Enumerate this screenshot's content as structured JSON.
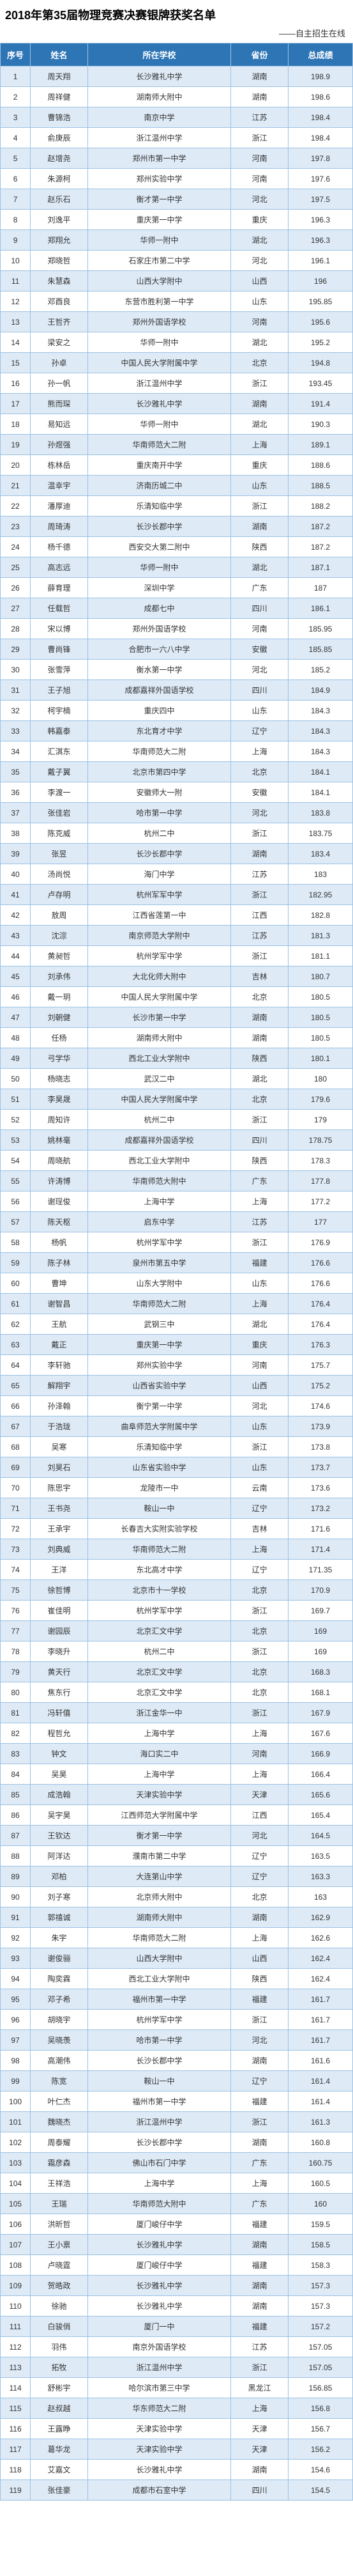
{
  "title": "2018年第35届物理竞赛决赛银牌获奖名单",
  "subtitle": "——自主招生在线",
  "columns": [
    "序号",
    "姓名",
    "所在学校",
    "省份",
    "总成绩"
  ],
  "rows": [
    [
      1,
      "周天翔",
      "长沙雅礼中学",
      "湖南",
      198.9
    ],
    [
      2,
      "周祥健",
      "湖南师大附中",
      "湖南",
      198.6
    ],
    [
      3,
      "曹锦浩",
      "南京中学",
      "江苏",
      198.4
    ],
    [
      4,
      "俞庚辰",
      "浙江温州中学",
      "浙江",
      198.4
    ],
    [
      5,
      "赵增尧",
      "郑州市第一中学",
      "河南",
      197.8
    ],
    [
      6,
      "朱源柯",
      "郑州实验中学",
      "河南",
      197.6
    ],
    [
      7,
      "赵乐石",
      "衡才第一中学",
      "河北",
      197.5
    ],
    [
      8,
      "刘逸平",
      "重庆第一中学",
      "重庆",
      196.3
    ],
    [
      9,
      "郑翔允",
      "华师一附中",
      "湖北",
      196.3
    ],
    [
      10,
      "郑晓哲",
      "石家庄市第二中学",
      "河北",
      196.1
    ],
    [
      11,
      "朱慧森",
      "山西大学附中",
      "山西",
      "196"
    ],
    [
      12,
      "邓酉良",
      "东营市胜利第一中学",
      "山东",
      195.85
    ],
    [
      13,
      "王哲齐",
      "郑州外国语学校",
      "河南",
      195.6
    ],
    [
      14,
      "梁安之",
      "华师一附中",
      "湖北",
      195.2
    ],
    [
      15,
      "孙卓",
      "中国人民大学附属中学",
      "北京",
      194.8
    ],
    [
      16,
      "孙一帆",
      "浙江温州中学",
      "浙江",
      193.45
    ],
    [
      17,
      "熊而琛",
      "长沙雅礼中学",
      "湖南",
      191.4
    ],
    [
      18,
      "易知远",
      "华师一附中",
      "湖北",
      190.3
    ],
    [
      19,
      "孙煜强",
      "华南师范大二附",
      "上海",
      189.1
    ],
    [
      20,
      "栋林岳",
      "重庆南开中学",
      "重庆",
      188.6
    ],
    [
      21,
      "温幸宇",
      "济南历城二中",
      "山东",
      188.5
    ],
    [
      22,
      "潘厚迪",
      "乐清知临中学",
      "浙江",
      188.2
    ],
    [
      23,
      "周琦涛",
      "长沙长郡中学",
      "湖南",
      187.2
    ],
    [
      24,
      "杨千德",
      "西安交大第二附中",
      "陕西",
      187.2
    ],
    [
      25,
      "高志远",
      "华师一附中",
      "湖北",
      187.1
    ],
    [
      26,
      "薛育理",
      "深圳中学",
      "广东",
      "187"
    ],
    [
      27,
      "任载哲",
      "成都七中",
      "四川",
      186.1
    ],
    [
      28,
      "宋以博",
      "郑州外国语学校",
      "河南",
      185.95
    ],
    [
      29,
      "曹尚锋",
      "合肥市一六八中学",
      "安徽",
      185.85
    ],
    [
      30,
      "张雪萍",
      "衡水第一中学",
      "河北",
      185.2
    ],
    [
      31,
      "王子旭",
      "成都嘉祥外国语学校",
      "四川",
      184.9
    ],
    [
      32,
      "柯宇楠",
      "重庆四中",
      "山东",
      184.3
    ],
    [
      33,
      "韩嘉泰",
      "东北育才中学",
      "辽宁",
      184.3
    ],
    [
      34,
      "汇淇东",
      "华南师范大二附",
      "上海",
      184.3
    ],
    [
      35,
      "戴子翼",
      "北京市第四中学",
      "北京",
      184.1
    ],
    [
      36,
      "李渡一",
      "安徽师大一附",
      "安徽",
      184.1
    ],
    [
      37,
      "张佳岩",
      "哈市第一中学",
      "河北",
      183.8
    ],
    [
      38,
      "陈克威",
      "杭州二中",
      "浙江",
      183.75
    ],
    [
      39,
      "张昱",
      "长沙长郡中学",
      "湖南",
      183.4
    ],
    [
      40,
      "汤尚悦",
      "海门中学",
      "江苏",
      "183"
    ],
    [
      41,
      "卢存明",
      "杭州军军中学",
      "浙江",
      182.95
    ],
    [
      42,
      "敖周",
      "江西省莲第一中",
      "江西",
      182.8
    ],
    [
      43,
      "沈淙",
      "南京师范大学附中",
      "江苏",
      181.3
    ],
    [
      44,
      "黄昶哲",
      "杭州学军中学",
      "浙江",
      181.1
    ],
    [
      45,
      "刘承伟",
      "大北化师大附中",
      "吉林",
      180.7
    ],
    [
      46,
      "戴一玥",
      "中国人民大学附属中学",
      "北京",
      180.5
    ],
    [
      47,
      "刘朝健",
      "长沙市第一中学",
      "湖南",
      180.5
    ],
    [
      48,
      "任杨",
      "湖南师大附中",
      "湖南",
      180.5
    ],
    [
      49,
      "弓学华",
      "西北工业大学附中",
      "陕西",
      180.1
    ],
    [
      50,
      "杨晓志",
      "武汉二中",
      "湖北",
      "180"
    ],
    [
      51,
      "李昊晟",
      "中国人民大学附属中学",
      "北京",
      179.6
    ],
    [
      52,
      "周知许",
      "杭州二中",
      "浙江",
      "179"
    ],
    [
      53,
      "姚林毫",
      "成都嘉祥外国语学校",
      "四川",
      178.75
    ],
    [
      54,
      "周晓航",
      "西北工业大学附中",
      "陕西",
      178.3
    ],
    [
      55,
      "许涛博",
      "华南师范大附中",
      "广东",
      177.8
    ],
    [
      56,
      "谢珵俊",
      "上海中学",
      "上海",
      177.2
    ],
    [
      57,
      "陈天枢",
      "启东中学",
      "江苏",
      "177"
    ],
    [
      58,
      "杨帆",
      "杭州学军中学",
      "浙江",
      176.9
    ],
    [
      59,
      "陈子林",
      "泉州市第五中学",
      "福建",
      176.6
    ],
    [
      60,
      "曹坤",
      "山东大学附中",
      "山东",
      176.6
    ],
    [
      61,
      "谢智昌",
      "华南师范大二附",
      "上海",
      176.4
    ],
    [
      62,
      "王航",
      "武钢三中",
      "湖北",
      176.4
    ],
    [
      63,
      "戴正",
      "重庆第一中学",
      "重庆",
      176.3
    ],
    [
      64,
      "李轩驰",
      "郑州实验中学",
      "河南",
      175.7
    ],
    [
      65,
      "解翔宇",
      "山西省实验中学",
      "山西",
      175.2
    ],
    [
      66,
      "孙泽翰",
      "衡宁第一中学",
      "河北",
      174.6
    ],
    [
      67,
      "于浩珑",
      "曲阜师范大学附属中学",
      "山东",
      173.9
    ],
    [
      68,
      "吴寒",
      "乐清知临中学",
      "浙江",
      173.8
    ],
    [
      69,
      "刘昊石",
      "山东省实验中学",
      "山东",
      173.7
    ],
    [
      70,
      "陈思宇",
      "龙陵市一中",
      "云南",
      173.6
    ],
    [
      71,
      "王书尧",
      "鞍山一中",
      "辽宁",
      173.2
    ],
    [
      72,
      "王承宇",
      "长春吉大实附实验学校",
      "吉林",
      171.6
    ],
    [
      73,
      "刘典威",
      "华南师范大二附",
      "上海",
      171.4
    ],
    [
      74,
      "王洋",
      "东北高才中学",
      "辽宁",
      171.35
    ],
    [
      75,
      "徐哲博",
      "北京市十一学校",
      "北京",
      170.9
    ],
    [
      76,
      "崔佳明",
      "杭州学军中学",
      "浙江",
      169.7
    ],
    [
      77,
      "谢园辰",
      "北京汇文中学",
      "北京",
      "169"
    ],
    [
      78,
      "李晓升",
      "杭州二中",
      "浙江",
      "169"
    ],
    [
      79,
      "黄天行",
      "北京汇文中学",
      "北京",
      168.3
    ],
    [
      80,
      "焦东行",
      "北京汇文中学",
      "北京",
      168.1
    ],
    [
      81,
      "冯轩僖",
      "浙江金华一中",
      "浙江",
      167.9
    ],
    [
      82,
      "程哲允",
      "上海中学",
      "上海",
      167.6
    ],
    [
      83,
      "钟文",
      "海口实二中",
      "河南",
      166.9
    ],
    [
      84,
      "吴昊",
      "上海中学",
      "上海",
      166.4
    ],
    [
      85,
      "成浩翰",
      "天津实验中学",
      "天津",
      165.6
    ],
    [
      86,
      "吴宇昊",
      "江西师范大学附属中学",
      "江西",
      165.4
    ],
    [
      87,
      "王钦达",
      "衡才第一中学",
      "河北",
      164.5
    ],
    [
      88,
      "阿洋达",
      "濮南市第二中学",
      "辽宁",
      163.5
    ],
    [
      89,
      "邓柏",
      "大连第山中学",
      "辽宁",
      163.3
    ],
    [
      90,
      "刘子寒",
      "北京师大附中",
      "北京",
      "163"
    ],
    [
      91,
      "郭禧诚",
      "湖南师大附中",
      "湖南",
      162.9
    ],
    [
      92,
      "朱宇",
      "华南师范大二附",
      "上海",
      162.6
    ],
    [
      93,
      "谢俊骊",
      "山西大学附中",
      "山西",
      162.4
    ],
    [
      94,
      "陶奕霖",
      "西北工业大学附中",
      "陕西",
      162.4
    ],
    [
      95,
      "邓子希",
      "福州市第一中学",
      "福建",
      161.7
    ],
    [
      96,
      "胡晓宇",
      "杭州学军中学",
      "浙江",
      161.7
    ],
    [
      97,
      "吴晓羡",
      "哈市第一中学",
      "河北",
      161.7
    ],
    [
      98,
      "高潮伟",
      "长沙长郡中学",
      "湖南",
      161.6
    ],
    [
      99,
      "陈宽",
      "鞍山一中",
      "辽宁",
      161.4
    ],
    [
      100,
      "叶仁杰",
      "福州市第一中学",
      "福建",
      161.4
    ],
    [
      101,
      "魏晓杰",
      "浙江温州中学",
      "浙江",
      161.3
    ],
    [
      102,
      "周泰耀",
      "长沙长郡中学",
      "湖南",
      160.8
    ],
    [
      103,
      "霜彦森",
      "佛山市石门中学",
      "广东",
      160.75
    ],
    [
      104,
      "王祥浩",
      "上海中学",
      "上海",
      160.5
    ],
    [
      105,
      "王瑞",
      "华南师范大附中",
      "广东",
      "160"
    ],
    [
      106,
      "洪昕哲",
      "厦门峻仔中学",
      "福建",
      159.5
    ],
    [
      107,
      "王小禀",
      "长沙雅礼中学",
      "湖南",
      158.5
    ],
    [
      108,
      "卢晓霆",
      "厦门峻仔中学",
      "福建",
      158.3
    ],
    [
      109,
      "贺皓政",
      "长沙雅礼中学",
      "湖南",
      157.3
    ],
    [
      110,
      "徐驰",
      "长沙雅礼中学",
      "湖南",
      157.3
    ],
    [
      111,
      "白骏俏",
      "厦门一中",
      "福建",
      157.2
    ],
    [
      112,
      "羽伟",
      "南京外国语学校",
      "江苏",
      157.05
    ],
    [
      113,
      "拓牧",
      "浙江温州中学",
      "浙江",
      157.05
    ],
    [
      114,
      "舒彬宇",
      "哈尔滨市第三中学",
      "黑龙江",
      156.85
    ],
    [
      115,
      "赵叔越",
      "华东师范大二附",
      "上海",
      156.8
    ],
    [
      116,
      "王露睁",
      "天津实验中学",
      "天津",
      156.7
    ],
    [
      117,
      "葛华龙",
      "天津实验中学",
      "天津",
      156.2
    ],
    [
      118,
      "艾嘉文",
      "长沙雅礼中学",
      "湖南",
      154.6
    ],
    [
      119,
      "张佳豪",
      "成都市石室中学",
      "四川",
      154.5
    ]
  ]
}
